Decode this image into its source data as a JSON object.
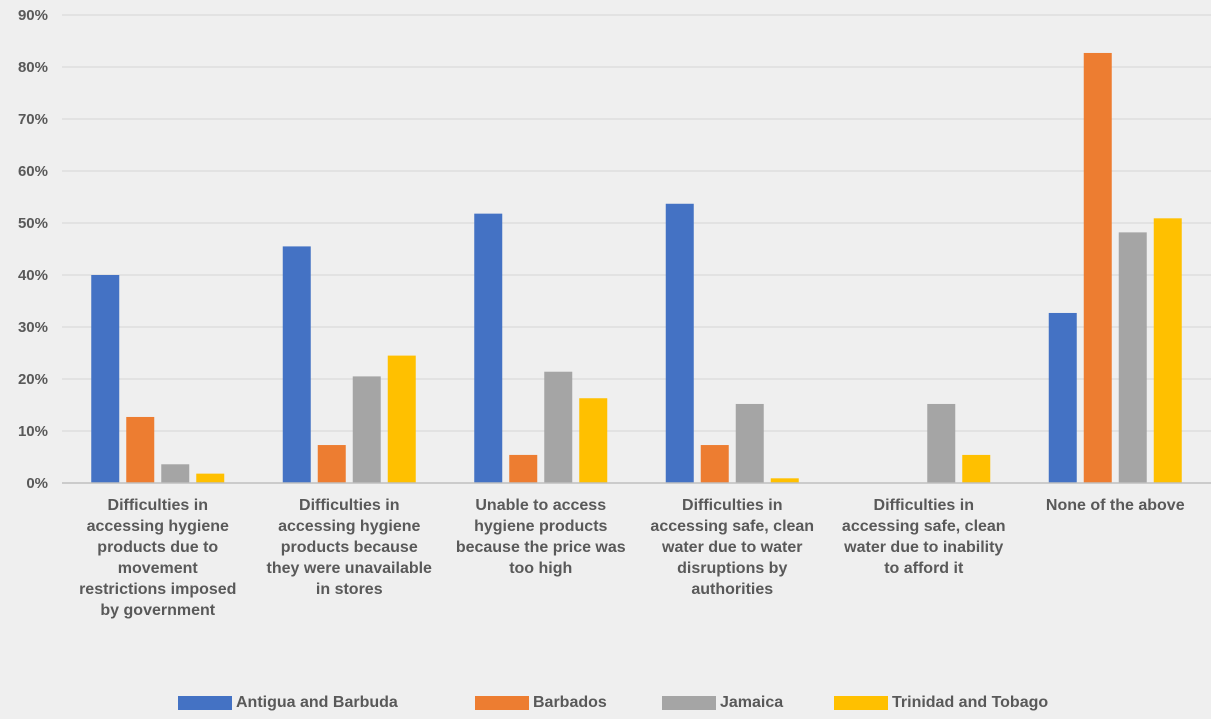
{
  "chart_data": {
    "type": "bar",
    "categories": [
      "Difficulties in accessing hygiene products due to movement restrictions imposed by government",
      "Difficulties in accessing hygiene products because they were unavailable in stores",
      "Unable to access hygiene products because the price was too high",
      "Difficulties in accessing safe, clean water due to water disruptions by authorities",
      "Difficulties in accessing safe, clean water due to inability to afford it",
      "None of the above"
    ],
    "series": [
      {
        "name": "Antigua and Barbuda",
        "color": "#4472c4",
        "values": [
          40,
          45.5,
          51.8,
          53.7,
          0,
          32.7
        ]
      },
      {
        "name": "Barbados",
        "color": "#ed7d31",
        "values": [
          12.7,
          7.3,
          5.4,
          7.3,
          0,
          82.7
        ]
      },
      {
        "name": "Jamaica",
        "color": "#a5a5a5",
        "values": [
          3.6,
          20.5,
          21.4,
          15.2,
          15.2,
          48.2
        ]
      },
      {
        "name": "Trinidad and Tobago",
        "color": "#ffc000",
        "values": [
          1.8,
          24.5,
          16.3,
          0.9,
          5.4,
          50.9
        ]
      }
    ],
    "ylim": [
      0,
      90
    ],
    "yticks": [
      "0%",
      "10%",
      "20%",
      "30%",
      "40%",
      "50%",
      "60%",
      "70%",
      "80%",
      "90%"
    ],
    "grid": true,
    "legend_position": "bottom"
  }
}
